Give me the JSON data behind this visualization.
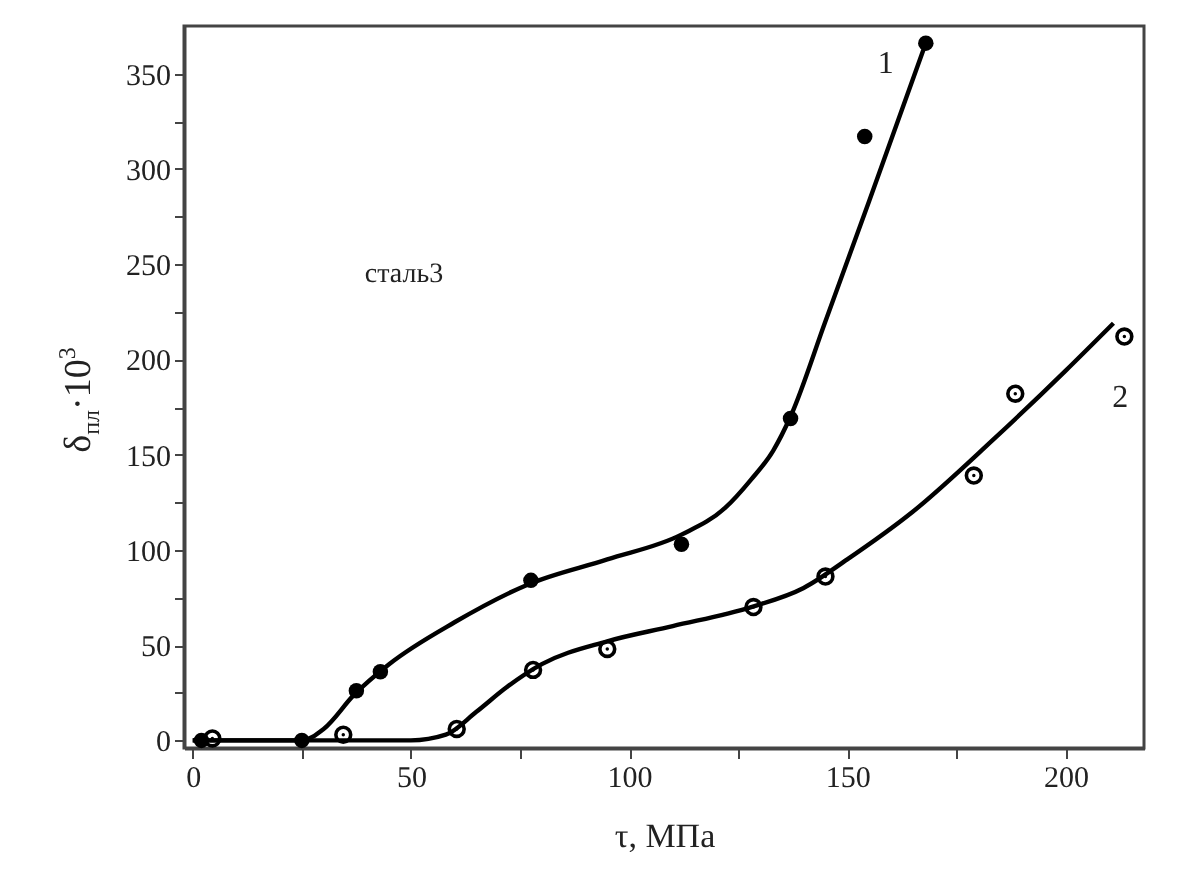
{
  "chart_data": {
    "type": "scatter",
    "xlabel": "τ, МПа",
    "ylabel": "δ$_{пл}$·10$^{3}$",
    "annotations": [
      "сталь3"
    ],
    "xlim": [
      -2,
      218
    ],
    "xticks": [
      0,
      {
        "value": 25,
        "label": null
      },
      50,
      {
        "value": 75,
        "label": null
      },
      100,
      {
        "value": 125,
        "label": null
      },
      150,
      {
        "value": 175,
        "label": null
      },
      200
    ],
    "ylim": [
      -4,
      375
    ],
    "yticks": [
      0,
      {
        "value": 25,
        "label": null
      },
      50,
      {
        "value": 75,
        "label": null
      },
      100,
      {
        "value": 125,
        "label": null
      },
      150,
      {
        "value": 175,
        "label": null
      },
      200,
      {
        "value": 225,
        "label": null
      },
      250,
      {
        "value": 275,
        "label": null
      },
      300,
      {
        "value": 325,
        "label": null
      },
      350
    ],
    "marker": "circle",
    "series": [
      {
        "name": "1",
        "color": "#000000",
        "x": [
          2,
          25,
          37.5,
          43,
          77.5,
          112,
          137,
          154,
          168
        ],
        "values": [
          0,
          0,
          26,
          36,
          84,
          103,
          169,
          317,
          366
        ]
      },
      {
        "name": "2",
        "color": "#000000",
        "x": [
          4.5,
          34.5,
          60.5,
          78,
          95,
          128.5,
          145,
          179,
          188.5,
          213.5
        ],
        "values": [
          1,
          3,
          6,
          37,
          48,
          70,
          86,
          139,
          182,
          212
        ]
      },
      {
        "type": "line",
        "marker": "none",
        "color": "#000000",
        "x": [
          0,
          25,
          30,
          37,
          45,
          60,
          77,
          95,
          112,
          122,
          128,
          133,
          137,
          145,
          155,
          168
        ],
        "values": [
          0,
          0,
          6,
          24,
          40,
          62,
          82,
          95,
          108,
          122,
          137,
          152,
          170,
          220,
          283,
          366
        ]
      },
      {
        "type": "line",
        "marker": "none",
        "color": "#000000",
        "x": [
          0,
          50,
          58,
          65,
          72,
          80,
          95,
          110,
          128,
          140,
          150,
          165,
          183.5,
          200,
          211
        ],
        "values": [
          0,
          0,
          3,
          15,
          28,
          40,
          52,
          60,
          70,
          80,
          95,
          120,
          158,
          194,
          219
        ]
      }
    ]
  }
}
